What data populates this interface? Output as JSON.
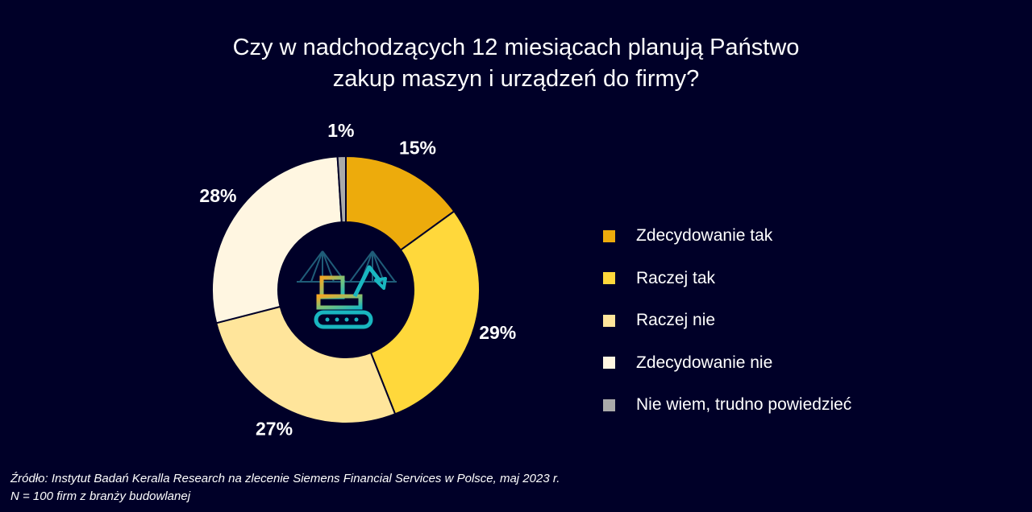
{
  "title": {
    "line1": "Czy w nadchodzących 12 miesiącach planują Państwo",
    "line2": "zakup maszyn i urządzeń do firmy?"
  },
  "chart_data": {
    "type": "pie",
    "variant": "donut",
    "categories": [
      "Zdecydowanie tak",
      "Raczej tak",
      "Raczej nie",
      "Zdecydowanie nie",
      "Nie wiem, trudno powiedzieć"
    ],
    "values": [
      15,
      29,
      27,
      28,
      1
    ],
    "labels": [
      "15%",
      "29%",
      "27%",
      "28%",
      "1%"
    ],
    "colors": [
      "#EDAB0C",
      "#FFD83B",
      "#FFE59B",
      "#FFF6E1",
      "#AAAAAA"
    ],
    "legend_position": "right",
    "center_icon": "excavator-icon"
  },
  "source": {
    "line1": "Źródło: Instytut Badań Keralla Research na zlecenie Siemens Financial Services w Polsce, maj 2023 r.",
    "line2": "N = 100 firm z branży budowlanej"
  }
}
